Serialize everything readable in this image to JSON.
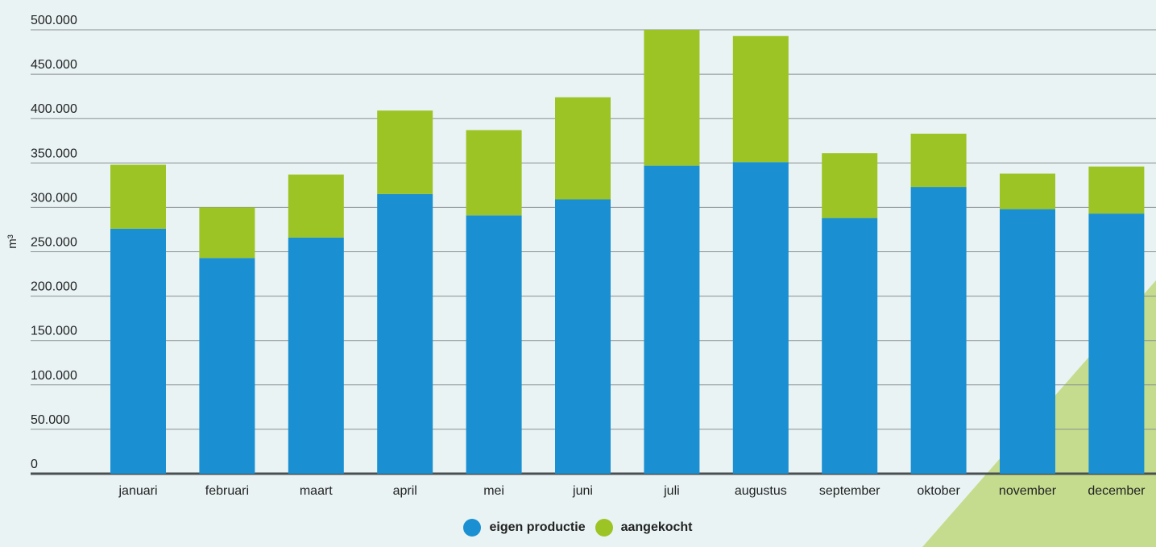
{
  "chart_data": {
    "type": "bar",
    "stacked": true,
    "title": "",
    "xlabel": "",
    "ylabel": "m³",
    "ylim": [
      0,
      500000
    ],
    "yticks": [
      0,
      50000,
      100000,
      150000,
      200000,
      250000,
      300000,
      350000,
      400000,
      450000,
      500000
    ],
    "ytick_labels": [
      "0",
      "50.000",
      "100.000",
      "150.000",
      "200.000",
      "250.000",
      "300.000",
      "350.000",
      "400.000",
      "450.000",
      "500.000"
    ],
    "grid": true,
    "legend_position": "bottom",
    "categories": [
      "januari",
      "februari",
      "maart",
      "april",
      "mei",
      "juni",
      "juli",
      "augustus",
      "september",
      "oktober",
      "november",
      "december"
    ],
    "series": [
      {
        "name": "eigen productie",
        "color": "#1a90d2",
        "values": [
          276000,
          243000,
          266000,
          315000,
          291000,
          309000,
          347000,
          351000,
          288000,
          323000,
          298000,
          293000
        ]
      },
      {
        "name": "aangekocht",
        "color": "#9cc424",
        "values": [
          72000,
          57000,
          71000,
          94000,
          96000,
          115000,
          153000,
          142000,
          73000,
          60000,
          40000,
          53000
        ]
      }
    ]
  }
}
